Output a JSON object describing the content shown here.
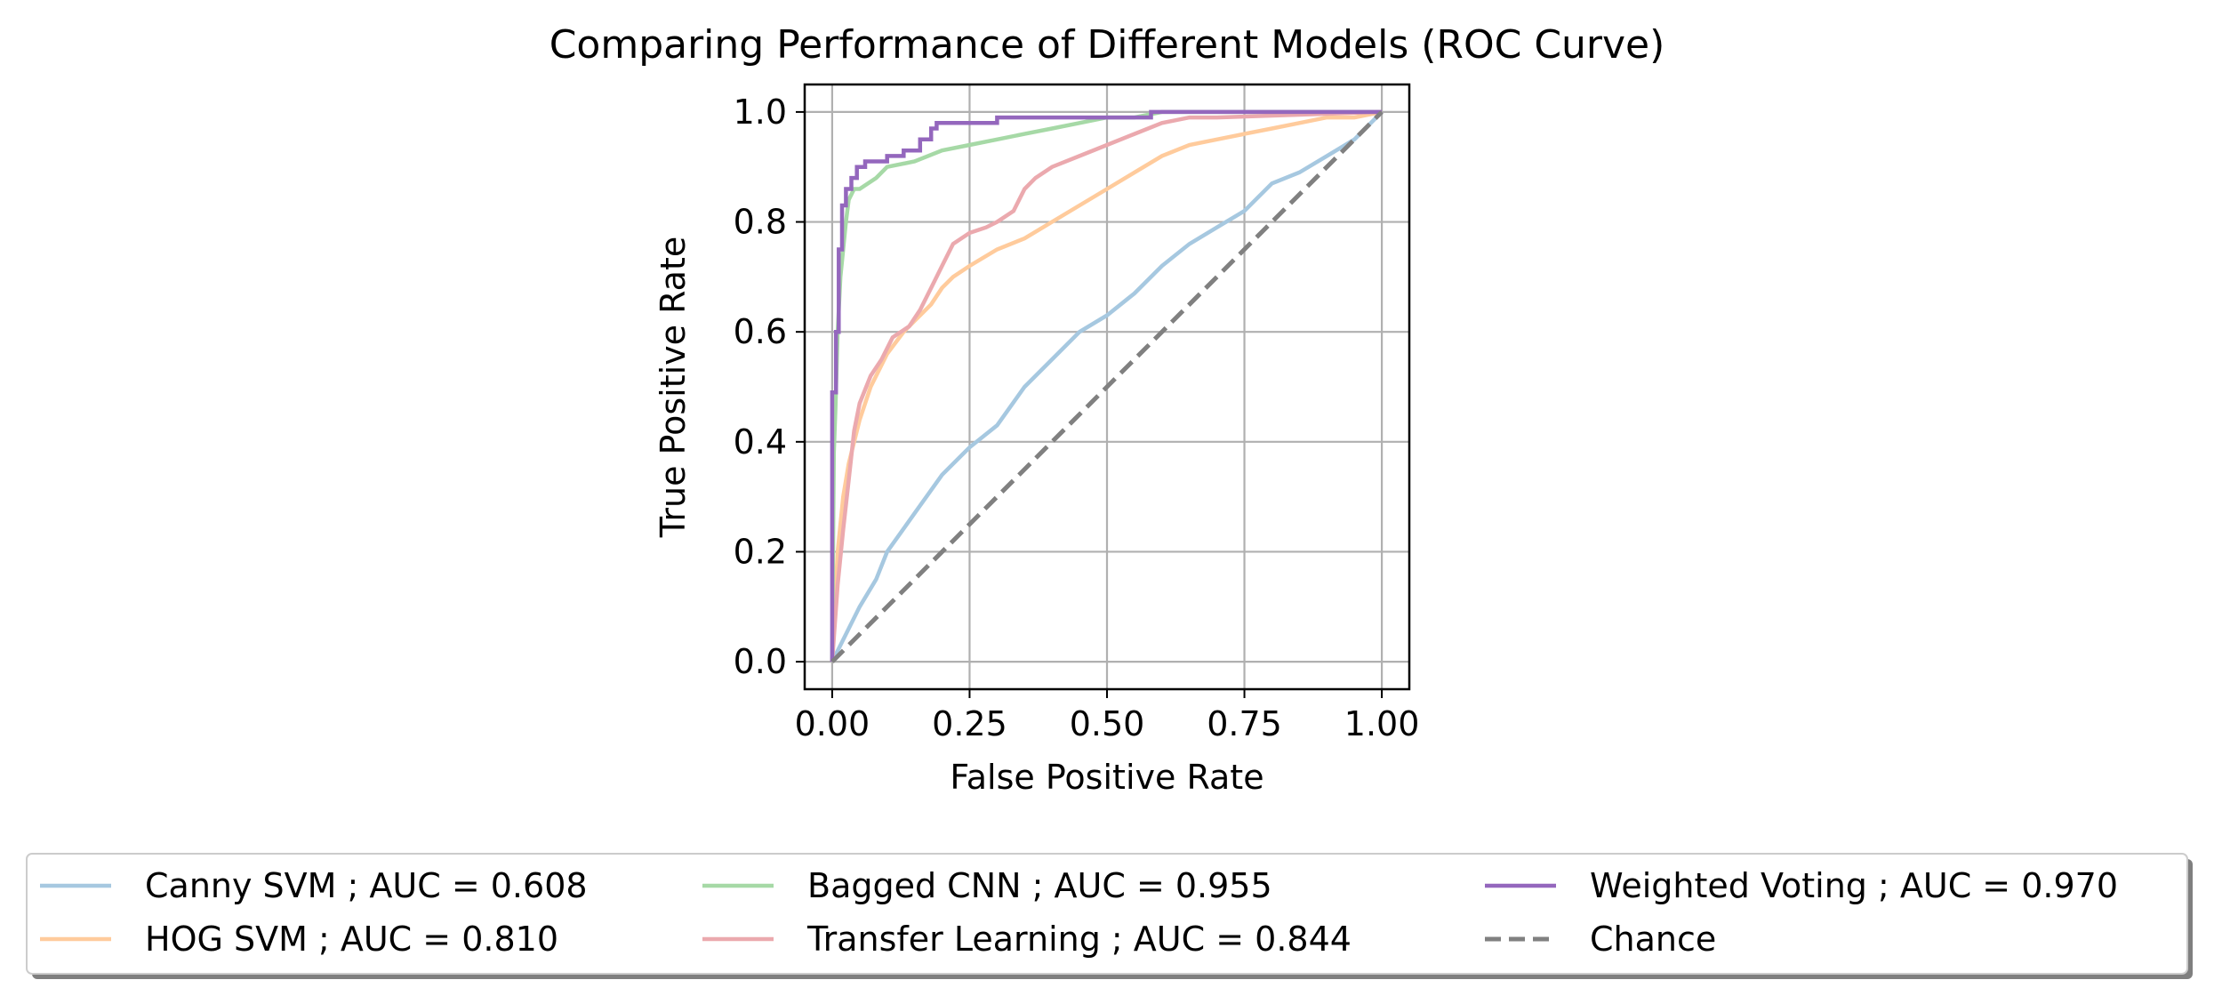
{
  "chart_data": {
    "type": "line",
    "title": "Comparing Performance of Different Models (ROC Curve)",
    "xlabel": "False Positive Rate",
    "ylabel": "True Positive Rate",
    "xlim": [
      -0.05,
      1.05
    ],
    "ylim": [
      -0.05,
      1.05
    ],
    "xticks": [
      0.0,
      0.25,
      0.5,
      0.75,
      1.0
    ],
    "xtick_labels": [
      "0.00",
      "0.25",
      "0.50",
      "0.75",
      "1.00"
    ],
    "yticks": [
      0.0,
      0.2,
      0.4,
      0.6,
      0.8,
      1.0
    ],
    "ytick_labels": [
      "0.0",
      "0.2",
      "0.4",
      "0.6",
      "0.8",
      "1.0"
    ],
    "grid": true,
    "legend_position": "bottom",
    "legend_columns": 3,
    "series": [
      {
        "name": "Canny SVM ; AUC = 0.608",
        "color": "#a6c8e0",
        "style": "solid",
        "x": [
          0.0,
          0.02,
          0.05,
          0.08,
          0.1,
          0.15,
          0.2,
          0.25,
          0.3,
          0.35,
          0.4,
          0.45,
          0.5,
          0.55,
          0.6,
          0.65,
          0.7,
          0.75,
          0.8,
          0.85,
          0.9,
          0.95,
          1.0
        ],
        "y": [
          0.0,
          0.04,
          0.1,
          0.15,
          0.2,
          0.27,
          0.34,
          0.39,
          0.43,
          0.5,
          0.55,
          0.6,
          0.63,
          0.67,
          0.72,
          0.76,
          0.79,
          0.82,
          0.87,
          0.89,
          0.92,
          0.95,
          1.0
        ]
      },
      {
        "name": "HOG SVM ; AUC = 0.810",
        "color": "#ffcb9c",
        "style": "solid",
        "x": [
          0.0,
          0.01,
          0.02,
          0.03,
          0.05,
          0.07,
          0.1,
          0.13,
          0.15,
          0.18,
          0.2,
          0.22,
          0.25,
          0.3,
          0.35,
          0.4,
          0.45,
          0.5,
          0.55,
          0.6,
          0.65,
          0.7,
          0.75,
          0.8,
          0.85,
          0.9,
          0.95,
          1.0
        ],
        "y": [
          0.0,
          0.2,
          0.3,
          0.36,
          0.44,
          0.5,
          0.56,
          0.6,
          0.62,
          0.65,
          0.68,
          0.7,
          0.72,
          0.75,
          0.77,
          0.8,
          0.83,
          0.86,
          0.89,
          0.92,
          0.94,
          0.95,
          0.96,
          0.97,
          0.98,
          0.99,
          0.99,
          1.0
        ]
      },
      {
        "name": "Bagged CNN ; AUC = 0.955",
        "color": "#a6d9a6",
        "style": "solid",
        "x": [
          0.0,
          0.003,
          0.006,
          0.01,
          0.015,
          0.02,
          0.025,
          0.03,
          0.04,
          0.05,
          0.08,
          0.1,
          0.15,
          0.2,
          0.25,
          0.3,
          0.35,
          0.4,
          0.45,
          0.5,
          0.55,
          0.6,
          0.7,
          0.8,
          1.0
        ],
        "y": [
          0.0,
          0.38,
          0.46,
          0.6,
          0.7,
          0.75,
          0.8,
          0.84,
          0.86,
          0.86,
          0.88,
          0.9,
          0.91,
          0.93,
          0.94,
          0.95,
          0.96,
          0.97,
          0.98,
          0.99,
          0.99,
          1.0,
          1.0,
          1.0,
          1.0
        ]
      },
      {
        "name": "Transfer Learning ; AUC = 0.844",
        "color": "#eba9ae",
        "style": "solid",
        "x": [
          0.0,
          0.01,
          0.02,
          0.03,
          0.04,
          0.05,
          0.07,
          0.09,
          0.11,
          0.14,
          0.16,
          0.18,
          0.2,
          0.22,
          0.25,
          0.28,
          0.3,
          0.33,
          0.35,
          0.37,
          0.4,
          0.45,
          0.5,
          0.55,
          0.6,
          0.65,
          0.7,
          1.0
        ],
        "y": [
          0.0,
          0.14,
          0.24,
          0.33,
          0.42,
          0.47,
          0.52,
          0.55,
          0.59,
          0.61,
          0.64,
          0.68,
          0.72,
          0.76,
          0.78,
          0.79,
          0.8,
          0.82,
          0.86,
          0.88,
          0.9,
          0.92,
          0.94,
          0.96,
          0.98,
          0.99,
          0.99,
          1.0
        ]
      },
      {
        "name": "Weighted Voting ; AUC = 0.970",
        "color": "#9467bd",
        "style": "solid",
        "x": [
          0.0,
          0.0,
          0.007,
          0.007,
          0.012,
          0.012,
          0.018,
          0.018,
          0.025,
          0.025,
          0.035,
          0.035,
          0.045,
          0.045,
          0.06,
          0.06,
          0.1,
          0.1,
          0.13,
          0.13,
          0.16,
          0.16,
          0.18,
          0.18,
          0.19,
          0.19,
          0.3,
          0.3,
          0.58,
          0.58,
          1.0
        ],
        "y": [
          0.0,
          0.49,
          0.49,
          0.6,
          0.6,
          0.75,
          0.75,
          0.83,
          0.83,
          0.86,
          0.86,
          0.88,
          0.88,
          0.9,
          0.9,
          0.91,
          0.91,
          0.92,
          0.92,
          0.93,
          0.93,
          0.95,
          0.95,
          0.97,
          0.97,
          0.98,
          0.98,
          0.99,
          0.99,
          1.0,
          1.0
        ]
      },
      {
        "name": "Chance",
        "color": "#808080",
        "style": "dashed",
        "x": [
          0.0,
          1.0
        ],
        "y": [
          0.0,
          1.0
        ]
      }
    ]
  }
}
